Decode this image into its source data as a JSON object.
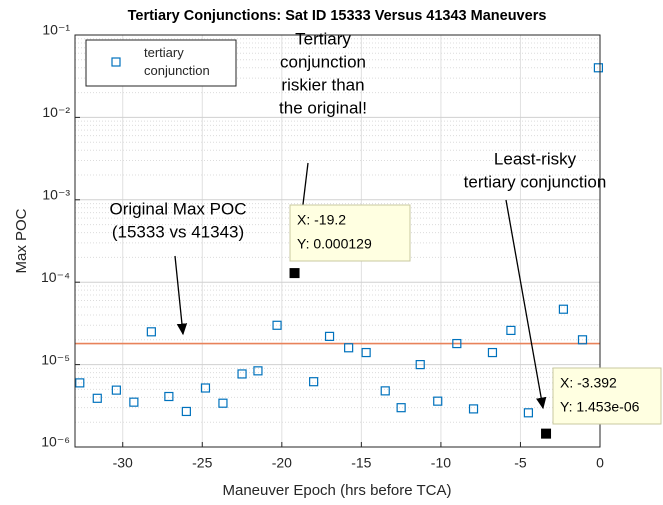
{
  "chart_data": {
    "type": "scatter",
    "title": "Tertiary Conjunctions: Sat ID 15333 Versus 41343 Maneuvers",
    "xlabel": "Maneuver Epoch (hrs before TCA)",
    "ylabel": "Max POC",
    "xlim": [
      -33,
      0
    ],
    "xticks": [
      -30,
      -25,
      -20,
      -15,
      -10,
      -5,
      0
    ],
    "ylim": [
      1e-06,
      0.1
    ],
    "log_y": true,
    "yticks": [
      {
        "value": 1e-06,
        "label": "10⁻⁶"
      },
      {
        "value": 1e-05,
        "label": "10⁻⁵"
      },
      {
        "value": 0.0001,
        "label": "10⁻⁴"
      },
      {
        "value": 0.001,
        "label": "10⁻³"
      },
      {
        "value": 0.01,
        "label": "10⁻²"
      },
      {
        "value": 0.1,
        "label": "10⁻¹"
      }
    ],
    "grid": true,
    "minor_grid": true,
    "legend": "upper left",
    "series": [
      {
        "name": "tertiary conjunction",
        "color": "#0072bd",
        "marker": "square",
        "x": [
          -32.7,
          -31.6,
          -30.4,
          -29.3,
          -28.2,
          -27.1,
          -26.0,
          -24.8,
          -23.7,
          -22.5,
          -21.5,
          -20.3,
          -18.0,
          -17.0,
          -15.8,
          -14.7,
          -13.5,
          -12.5,
          -11.3,
          -10.2,
          -9.0,
          -7.95,
          -6.76,
          -5.6,
          -4.5,
          -2.3,
          -1.1,
          -0.1
        ],
        "values": [
          6e-06,
          3.9e-06,
          4.9e-06,
          3.5e-06,
          2.5e-05,
          4.1e-06,
          2.7e-06,
          5.2e-06,
          3.4e-06,
          7.7e-06,
          8.4e-06,
          3e-05,
          6.2e-06,
          2.2e-05,
          1.6e-05,
          1.4e-05,
          4.8e-06,
          3e-06,
          1e-05,
          3.6e-06,
          1.8e-05,
          2.9e-06,
          1.4e-05,
          2.6e-05,
          2.6e-06,
          4.7e-05,
          2e-05,
          0.04
        ]
      }
    ],
    "reference_lines": [
      {
        "y": 1.8e-05,
        "color": "#e8825a"
      }
    ],
    "data_tips": [
      {
        "x": -19.2,
        "y": 0.000129,
        "labels": [
          "X: -19.2",
          "Y: 0.000129"
        ]
      },
      {
        "x": -3.392,
        "y": 1.453e-06,
        "labels": [
          "X: -3.392",
          "Y: 1.453e-06"
        ]
      }
    ],
    "annotations": [
      {
        "lines": [
          "Tertiary",
          "conjunction",
          "riskier than",
          "the original!"
        ]
      },
      {
        "lines": [
          "Least-risky",
          "tertiary conjunction"
        ]
      },
      {
        "lines": [
          "Original Max POC",
          "(15333 vs 41343)"
        ]
      }
    ]
  }
}
